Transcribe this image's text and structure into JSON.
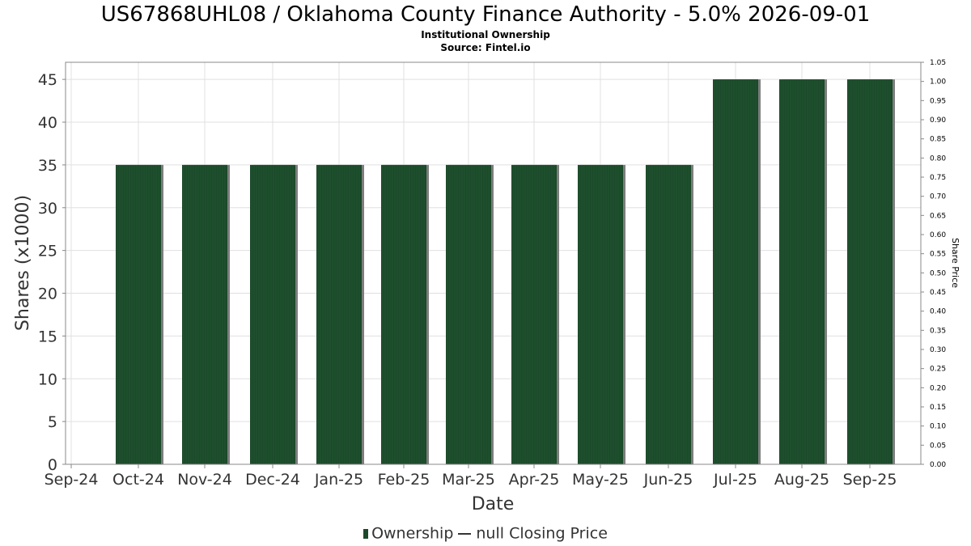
{
  "title": "US67868UHL08 / Oklahoma County Finance Authority - 5.0% 2026-09-01",
  "subtitle1": "Institutional Ownership",
  "subtitle2": "Source: Fintel.io",
  "legend": {
    "ownership": "Ownership",
    "closing_price": "null Closing Price"
  },
  "colors": {
    "bar": "#1b4a2a",
    "bar_shadow": "#7d7d7d",
    "grid": "#e0e0e0"
  },
  "chart_data": {
    "type": "bar",
    "categories": [
      "Oct-24",
      "Nov-24",
      "Dec-24",
      "Jan-25",
      "Feb-25",
      "Mar-25",
      "Apr-25",
      "May-25",
      "Jun-25",
      "Jul-25",
      "Aug-25",
      "Sep-25"
    ],
    "x_tick_labels": [
      "Sep-24",
      "Oct-24",
      "Nov-24",
      "Dec-24",
      "Jan-25",
      "Feb-25",
      "Mar-25",
      "Apr-25",
      "May-25",
      "Jun-25",
      "Jul-25",
      "Aug-25",
      "Sep-25"
    ],
    "series": [
      {
        "name": "Ownership",
        "values": [
          35,
          35,
          35,
          35,
          35,
          35,
          35,
          35,
          35,
          45,
          45,
          45
        ]
      }
    ],
    "xlabel": "Date",
    "ylabel": "Shares (x1000)",
    "ylim": [
      0,
      47
    ],
    "yticks": [
      0,
      5,
      10,
      15,
      20,
      25,
      30,
      35,
      40,
      45
    ],
    "y2label": "Share Price",
    "y2lim": [
      0,
      1.05
    ],
    "y2ticks": [
      "0.00",
      "0.05",
      "0.10",
      "0.15",
      "0.20",
      "0.25",
      "0.30",
      "0.35",
      "0.40",
      "0.45",
      "0.50",
      "0.55",
      "0.60",
      "0.65",
      "0.70",
      "0.75",
      "0.80",
      "0.85",
      "0.90",
      "0.95",
      "1.00",
      "1.05"
    ],
    "grid": true,
    "legend_position": "bottom"
  }
}
